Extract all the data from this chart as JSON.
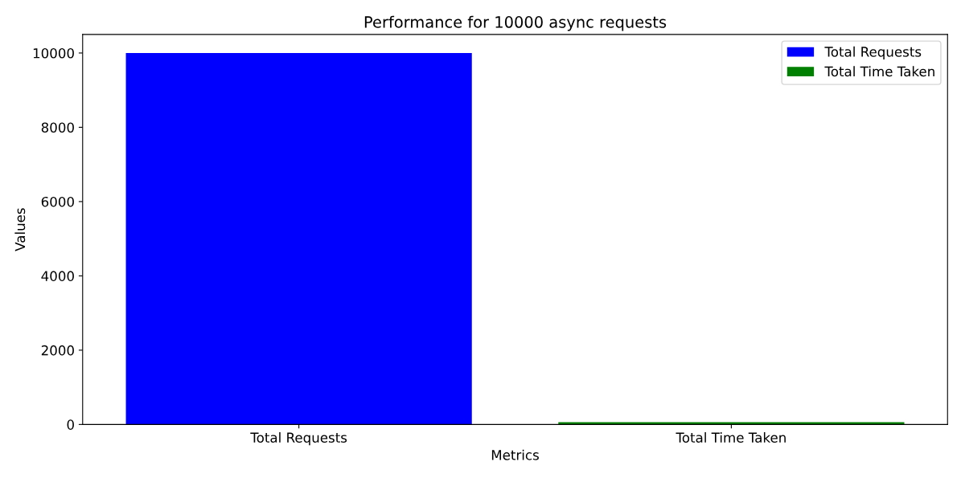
{
  "chart_data": {
    "type": "bar",
    "title": "Performance for 10000 async requests",
    "xlabel": "Metrics",
    "ylabel": "Values",
    "categories": [
      "Total Requests",
      "Total Time Taken"
    ],
    "series": [
      {
        "name": "Total Requests",
        "color": "#0000ff",
        "values": [
          10000,
          null
        ]
      },
      {
        "name": "Total Time Taken",
        "color": "#008000",
        "values": [
          null,
          60
        ]
      }
    ],
    "ylim": [
      0,
      10500
    ],
    "yticks": [
      0,
      2000,
      4000,
      6000,
      8000,
      10000
    ],
    "grid": false,
    "legend": "top right"
  }
}
